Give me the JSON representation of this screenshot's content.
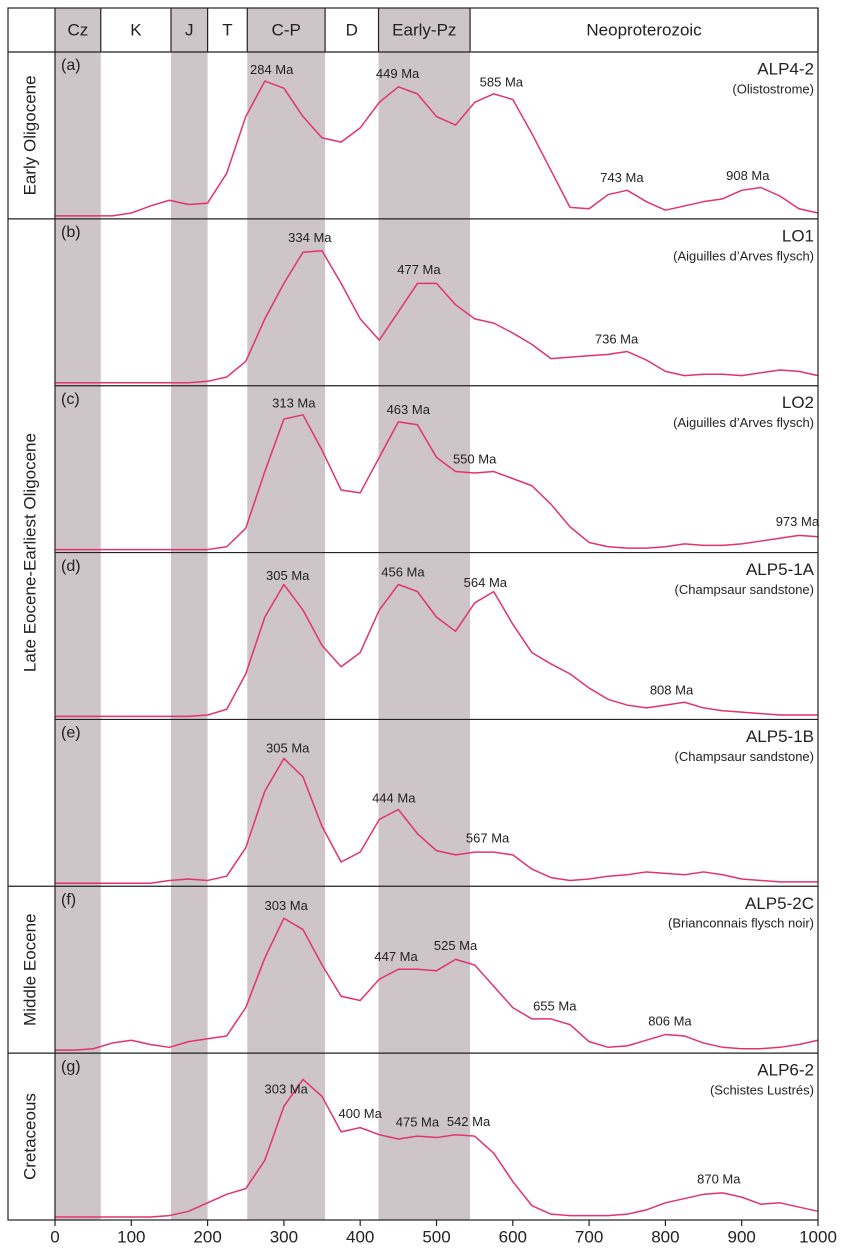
{
  "chart_data": {
    "type": "line",
    "xlim": [
      0,
      1000
    ],
    "xticks": [
      0,
      100,
      200,
      300,
      400,
      500,
      600,
      700,
      800,
      900,
      1000
    ],
    "ylim": [
      0,
      1
    ],
    "line_color": "#e3336f",
    "shade_color": "#cdc5c8",
    "periods": [
      {
        "label": "Cz",
        "start": 0,
        "end": 60,
        "shaded": true
      },
      {
        "label": "K",
        "start": 60,
        "end": 152,
        "shaded": false
      },
      {
        "label": "J",
        "start": 152,
        "end": 200,
        "shaded": true
      },
      {
        "label": "T",
        "start": 200,
        "end": 252,
        "shaded": false
      },
      {
        "label": "C-P",
        "start": 252,
        "end": 354,
        "shaded": true
      },
      {
        "label": "D",
        "start": 354,
        "end": 424,
        "shaded": false
      },
      {
        "label": "Early-Pz",
        "start": 424,
        "end": 544,
        "shaded": true
      },
      {
        "label": "Neoproterozoic",
        "start": 544,
        "end": 1000,
        "shaded": false
      }
    ],
    "x": [
      0,
      25,
      50,
      75,
      100,
      125,
      150,
      175,
      200,
      225,
      250,
      275,
      300,
      325,
      350,
      375,
      400,
      425,
      450,
      475,
      500,
      525,
      550,
      575,
      600,
      625,
      650,
      675,
      700,
      725,
      750,
      775,
      800,
      825,
      850,
      875,
      900,
      925,
      950,
      975,
      1000
    ],
    "groups": [
      {
        "label": "Early Oligocene",
        "series": [
          {
            "panel_label": "(a)",
            "name": "ALP4-2",
            "description": "(Olistostrome)",
            "values": [
              0,
              0,
              0,
              0,
              0.02,
              0.07,
              0.11,
              0.08,
              0.09,
              0.3,
              0.7,
              0.95,
              0.9,
              0.7,
              0.55,
              0.52,
              0.62,
              0.8,
              0.91,
              0.86,
              0.7,
              0.64,
              0.8,
              0.86,
              0.82,
              0.58,
              0.32,
              0.06,
              0.05,
              0.15,
              0.18,
              0.1,
              0.04,
              0.07,
              0.1,
              0.12,
              0.18,
              0.2,
              0.14,
              0.05,
              0.02
            ],
            "peaks": [
              {
                "value": 284,
                "label": "284 Ma"
              },
              {
                "value": 449,
                "label": "449 Ma"
              },
              {
                "value": 585,
                "label": "585 Ma"
              },
              {
                "value": 743,
                "label": "743 Ma"
              },
              {
                "value": 908,
                "label": "908 Ma"
              }
            ]
          }
        ]
      },
      {
        "label": "Late Eocene-Earliest Oligocene",
        "series": [
          {
            "panel_label": "(b)",
            "name": "LO1",
            "description": "(Aiguilles d’Arves flysch)",
            "values": [
              0,
              0,
              0,
              0,
              0,
              0,
              0,
              0,
              0.01,
              0.04,
              0.15,
              0.45,
              0.7,
              0.92,
              0.93,
              0.7,
              0.45,
              0.3,
              0.5,
              0.7,
              0.7,
              0.55,
              0.45,
              0.42,
              0.35,
              0.27,
              0.17,
              0.18,
              0.19,
              0.2,
              0.22,
              0.16,
              0.08,
              0.05,
              0.06,
              0.06,
              0.05,
              0.07,
              0.09,
              0.08,
              0.05
            ],
            "peaks": [
              {
                "value": 334,
                "label": "334 Ma"
              },
              {
                "value": 477,
                "label": "477 Ma"
              },
              {
                "value": 736,
                "label": "736 Ma"
              }
            ]
          },
          {
            "panel_label": "(c)",
            "name": "LO2",
            "description": "(Aiguilles d’Arves flysch)",
            "values": [
              0,
              0,
              0,
              0,
              0,
              0,
              0,
              0,
              0,
              0.02,
              0.15,
              0.55,
              0.92,
              0.95,
              0.7,
              0.42,
              0.4,
              0.65,
              0.9,
              0.88,
              0.65,
              0.55,
              0.54,
              0.55,
              0.5,
              0.45,
              0.32,
              0.16,
              0.05,
              0.02,
              0.01,
              0.01,
              0.02,
              0.04,
              0.03,
              0.03,
              0.04,
              0.06,
              0.08,
              0.1,
              0.09
            ],
            "peaks": [
              {
                "value": 313,
                "label": "313 Ma"
              },
              {
                "value": 463,
                "label": "463 Ma"
              },
              {
                "value": 550,
                "label": "550 Ma"
              },
              {
                "value": 973,
                "label": "973 Ma"
              }
            ]
          },
          {
            "panel_label": "(d)",
            "name": "ALP5-1A",
            "description": "(Champsaur sandstone)",
            "values": [
              0,
              0,
              0,
              0,
              0,
              0,
              0,
              0,
              0.01,
              0.05,
              0.3,
              0.7,
              0.93,
              0.75,
              0.5,
              0.35,
              0.45,
              0.75,
              0.93,
              0.88,
              0.7,
              0.6,
              0.8,
              0.88,
              0.65,
              0.45,
              0.37,
              0.3,
              0.2,
              0.12,
              0.08,
              0.06,
              0.08,
              0.1,
              0.06,
              0.04,
              0.03,
              0.02,
              0.01,
              0.01,
              0.01
            ],
            "peaks": [
              {
                "value": 305,
                "label": "305 Ma"
              },
              {
                "value": 456,
                "label": "456 Ma"
              },
              {
                "value": 564,
                "label": "564 Ma"
              },
              {
                "value": 808,
                "label": "808 Ma"
              }
            ]
          },
          {
            "panel_label": "(e)",
            "name": "ALP5-1B",
            "description": "(Champsaur sandstone)",
            "values": [
              0,
              0,
              0,
              0,
              0,
              0,
              0.02,
              0.03,
              0.02,
              0.05,
              0.25,
              0.65,
              0.88,
              0.75,
              0.4,
              0.15,
              0.22,
              0.45,
              0.52,
              0.35,
              0.23,
              0.2,
              0.22,
              0.22,
              0.2,
              0.1,
              0.04,
              0.02,
              0.03,
              0.05,
              0.06,
              0.08,
              0.07,
              0.06,
              0.08,
              0.06,
              0.03,
              0.02,
              0.01,
              0.01,
              0.01
            ],
            "peaks": [
              {
                "value": 305,
                "label": "305 Ma"
              },
              {
                "value": 444,
                "label": "444 Ma"
              },
              {
                "value": 567,
                "label": "567 Ma"
              }
            ]
          }
        ]
      },
      {
        "label": "Middle Eocene",
        "series": [
          {
            "panel_label": "(f)",
            "name": "ALP5-2C",
            "description": "(Brianconnais flysch noir)",
            "values": [
              0,
              0,
              0.01,
              0.05,
              0.07,
              0.04,
              0.02,
              0.06,
              0.08,
              0.1,
              0.3,
              0.65,
              0.93,
              0.85,
              0.6,
              0.38,
              0.35,
              0.5,
              0.57,
              0.57,
              0.56,
              0.64,
              0.6,
              0.45,
              0.3,
              0.22,
              0.22,
              0.18,
              0.06,
              0.02,
              0.03,
              0.07,
              0.11,
              0.1,
              0.05,
              0.02,
              0.01,
              0.01,
              0.02,
              0.04,
              0.07
            ],
            "peaks": [
              {
                "value": 303,
                "label": "303 Ma"
              },
              {
                "value": 447,
                "label": "447 Ma"
              },
              {
                "value": 525,
                "label": "525 Ma"
              },
              {
                "value": 655,
                "label": "655 Ma"
              },
              {
                "value": 806,
                "label": "806 Ma"
              }
            ]
          }
        ]
      },
      {
        "label": "Cretaceous",
        "series": [
          {
            "panel_label": "(g)",
            "name": "ALP6-2",
            "description": "(Schistes Lustrés)",
            "values": [
              0,
              0,
              0,
              0,
              0,
              0,
              0.01,
              0.04,
              0.1,
              0.16,
              0.2,
              0.4,
              0.78,
              0.97,
              0.85,
              0.6,
              0.63,
              0.58,
              0.55,
              0.57,
              0.56,
              0.58,
              0.57,
              0.45,
              0.25,
              0.08,
              0.02,
              0.01,
              0.01,
              0.01,
              0.02,
              0.05,
              0.1,
              0.13,
              0.16,
              0.17,
              0.14,
              0.09,
              0.1,
              0.07,
              0.04
            ],
            "peaks": [
              {
                "value": 303,
                "label": "303 Ma"
              },
              {
                "value": 400,
                "label": "400 Ma"
              },
              {
                "value": 475,
                "label": "475 Ma"
              },
              {
                "value": 542,
                "label": "542 Ma"
              },
              {
                "value": 870,
                "label": "870 Ma"
              }
            ]
          }
        ]
      }
    ]
  }
}
